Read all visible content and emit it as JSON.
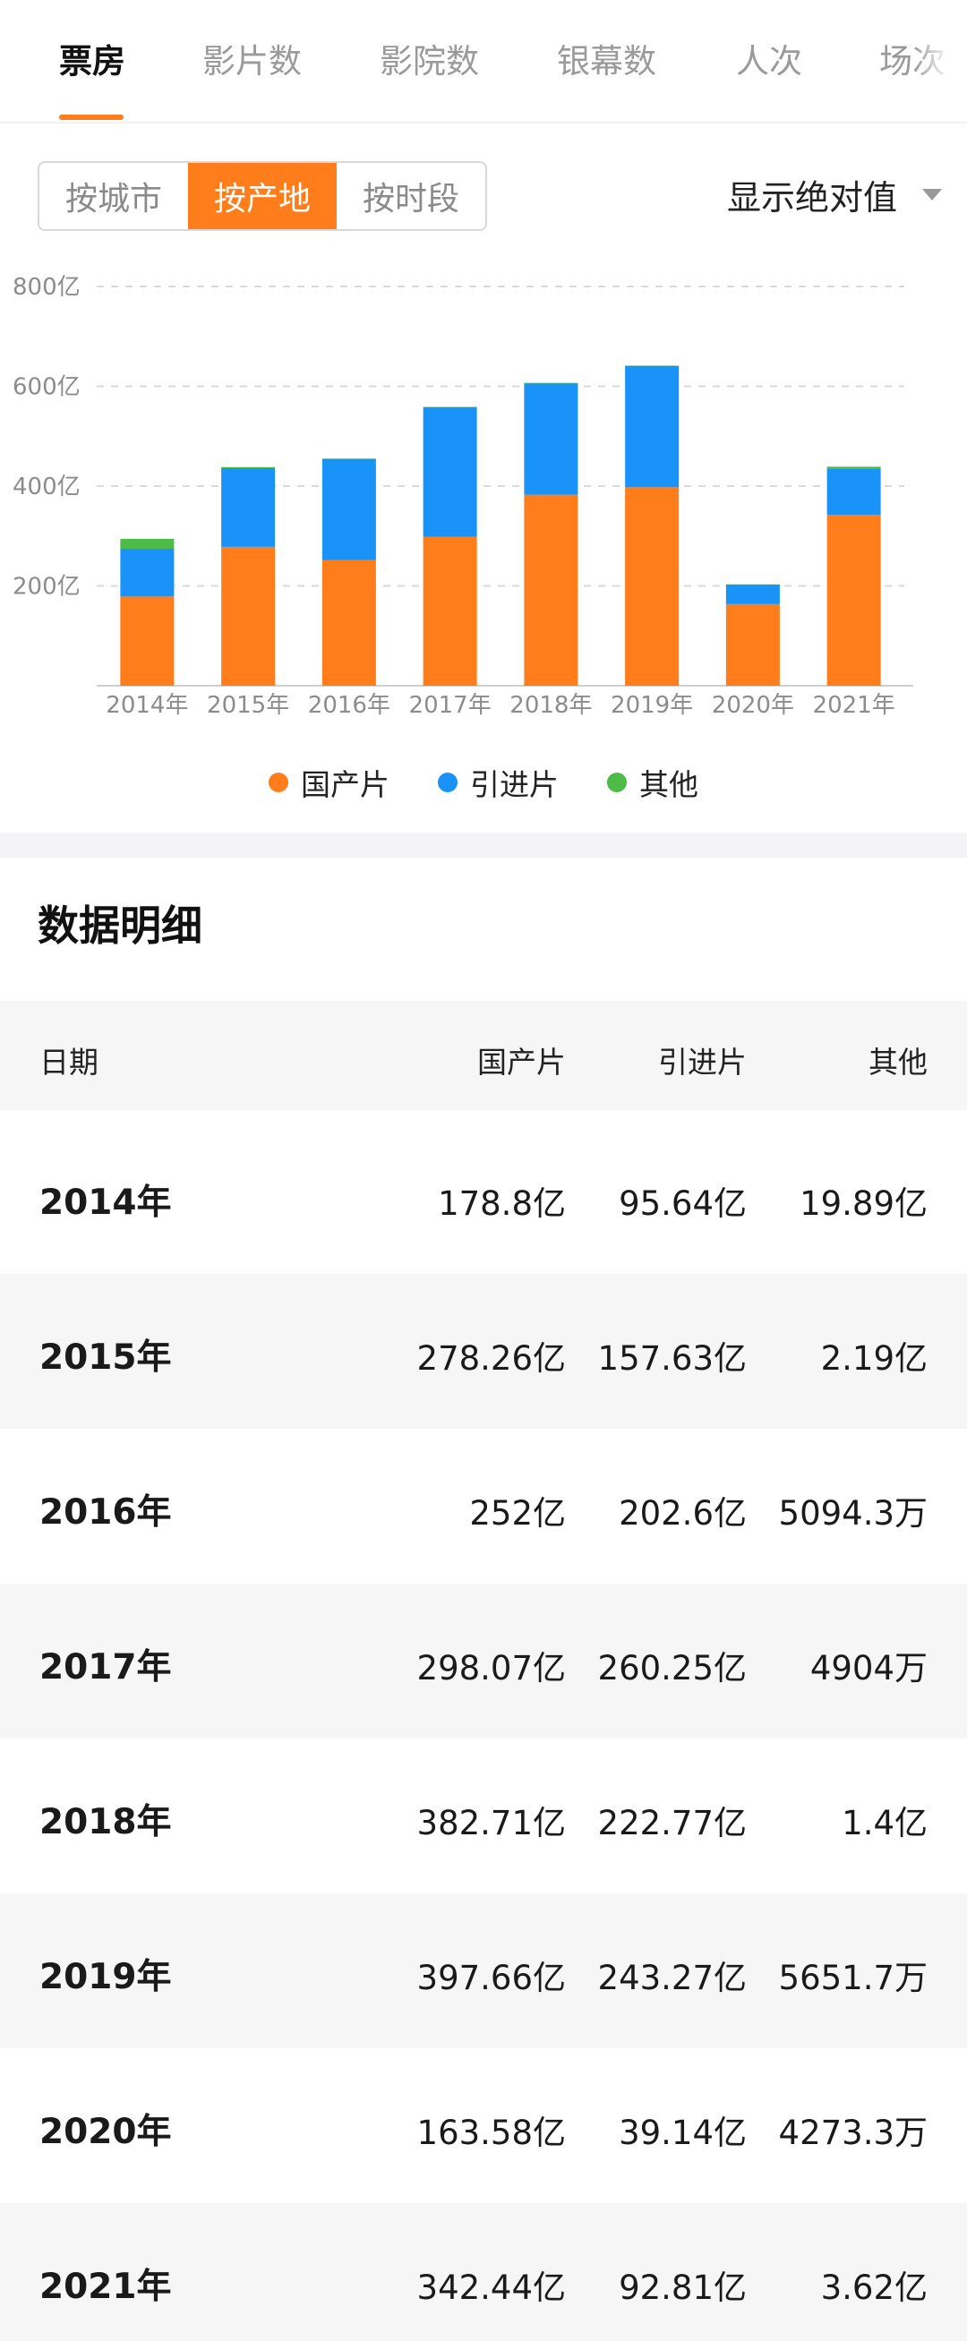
{
  "tabs": [
    "票房",
    "影片数",
    "影院数",
    "银幕数",
    "人次",
    "场次"
  ],
  "segments": [
    "按城市",
    "按产地",
    "按时段"
  ],
  "display_select": "显示绝对值",
  "colors": {
    "accent": "#ff7d1a",
    "domestic": "#ff7d1a",
    "imported": "#1a93f9",
    "other": "#4cbb47"
  },
  "chart_data": {
    "type": "bar",
    "stacked": true,
    "categories": [
      "2014年",
      "2015年",
      "2016年",
      "2017年",
      "2018年",
      "2019年",
      "2020年",
      "2021年"
    ],
    "series": [
      {
        "name": "国产片",
        "values": [
          178.8,
          278.26,
          252,
          298.07,
          382.71,
          397.66,
          163.58,
          342.44
        ]
      },
      {
        "name": "引进片",
        "values": [
          95.64,
          157.63,
          202.6,
          260.25,
          222.77,
          243.27,
          39.14,
          92.81
        ]
      },
      {
        "name": "其他",
        "values": [
          19.89,
          2.19,
          0.509,
          0.4904,
          1.4,
          0.5652,
          0.4273,
          3.62
        ]
      }
    ],
    "y_ticks": [
      "200亿",
      "400亿",
      "600亿",
      "800亿"
    ],
    "ylim": [
      0,
      800
    ],
    "grid": true,
    "legend_position": "bottom"
  },
  "table": {
    "title": "数据明细",
    "headers": [
      "日期",
      "国产片",
      "引进片",
      "其他"
    ],
    "rows": [
      [
        "2014年",
        "178.8亿",
        "95.64亿",
        "19.89亿"
      ],
      [
        "2015年",
        "278.26亿",
        "157.63亿",
        "2.19亿"
      ],
      [
        "2016年",
        "252亿",
        "202.6亿",
        "5094.3万"
      ],
      [
        "2017年",
        "298.07亿",
        "260.25亿",
        "4904万"
      ],
      [
        "2018年",
        "382.71亿",
        "222.77亿",
        "1.4亿"
      ],
      [
        "2019年",
        "397.66亿",
        "243.27亿",
        "5651.7万"
      ],
      [
        "2020年",
        "163.58亿",
        "39.14亿",
        "4273.3万"
      ],
      [
        "2021年",
        "342.44亿",
        "92.81亿",
        "3.62亿"
      ]
    ]
  }
}
